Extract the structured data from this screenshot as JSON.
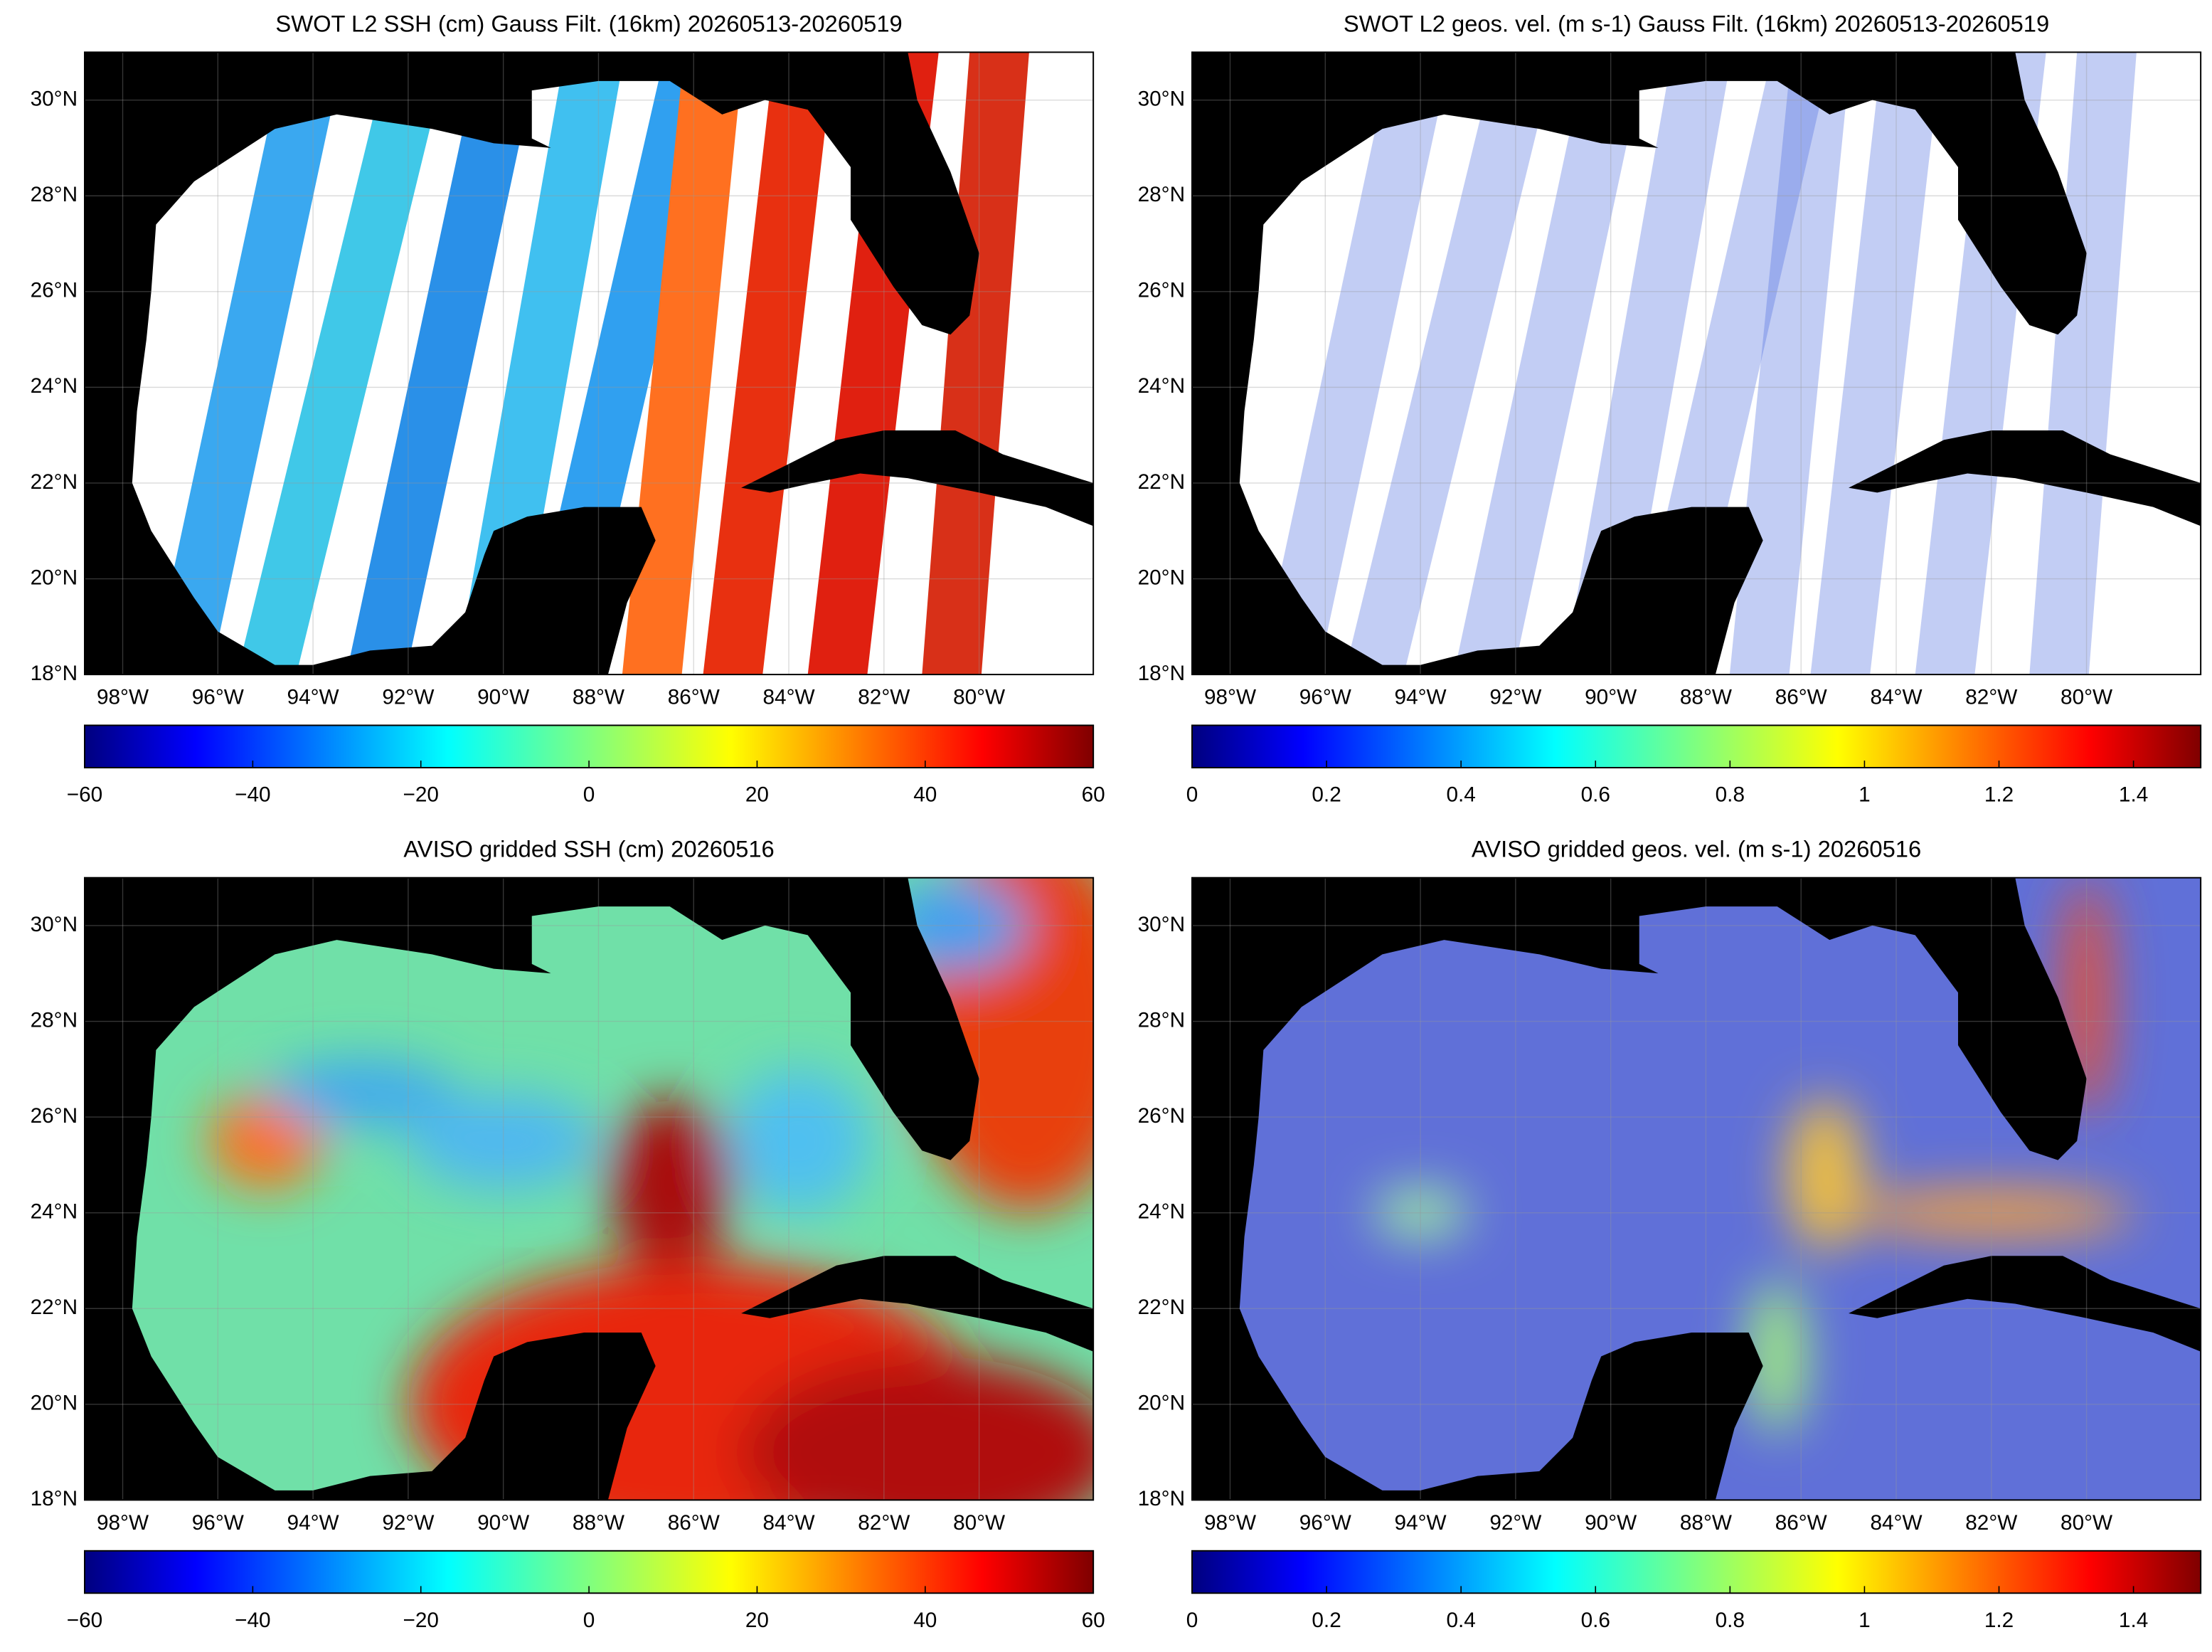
{
  "chart_data": [
    {
      "type": "map",
      "title": "SWOT L2 SSH (cm) Gauss Filt. (16km) 20260513-20260519",
      "xlim": [
        -98.8,
        -77.6
      ],
      "ylim": [
        18,
        31
      ],
      "xticks": [
        {
          "value": -98,
          "label": "98°W"
        },
        {
          "value": -96,
          "label": "96°W"
        },
        {
          "value": -94,
          "label": "94°W"
        },
        {
          "value": -92,
          "label": "92°W"
        },
        {
          "value": -90,
          "label": "90°W"
        },
        {
          "value": -88,
          "label": "88°W"
        },
        {
          "value": -86,
          "label": "86°W"
        },
        {
          "value": -84,
          "label": "84°W"
        },
        {
          "value": -82,
          "label": "82°W"
        },
        {
          "value": -80,
          "label": "80°W"
        }
      ],
      "yticks": [
        {
          "value": 18,
          "label": "18°N"
        },
        {
          "value": 20,
          "label": "20°N"
        },
        {
          "value": 22,
          "label": "22°N"
        },
        {
          "value": 24,
          "label": "24°N"
        },
        {
          "value": 26,
          "label": "26°N"
        },
        {
          "value": 28,
          "label": "28°N"
        },
        {
          "value": 30,
          "label": "30°N"
        }
      ],
      "colorbar": {
        "lim": [
          -60,
          60
        ],
        "ticks": [
          {
            "value": -60,
            "label": "−60"
          },
          {
            "value": -40,
            "label": "−40"
          },
          {
            "value": -20,
            "label": "−20"
          },
          0,
          20,
          40,
          60
        ]
      }
    },
    {
      "type": "map",
      "title": "SWOT L2 geos. vel. (m s-1) Gauss Filt. (16km) 20260513-20260519",
      "xlim": [
        -98.8,
        -77.6
      ],
      "ylim": [
        18,
        31
      ],
      "xticks": [
        {
          "value": -98,
          "label": "98°W"
        },
        {
          "value": -96,
          "label": "96°W"
        },
        {
          "value": -94,
          "label": "94°W"
        },
        {
          "value": -92,
          "label": "92°W"
        },
        {
          "value": -90,
          "label": "90°W"
        },
        {
          "value": -88,
          "label": "88°W"
        },
        {
          "value": -86,
          "label": "86°W"
        },
        {
          "value": -84,
          "label": "84°W"
        },
        {
          "value": -82,
          "label": "82°W"
        },
        {
          "value": -80,
          "label": "80°W"
        }
      ],
      "yticks": [
        {
          "value": 18,
          "label": "18°N"
        },
        {
          "value": 20,
          "label": "20°N"
        },
        {
          "value": 22,
          "label": "22°N"
        },
        {
          "value": 24,
          "label": "24°N"
        },
        {
          "value": 26,
          "label": "26°N"
        },
        {
          "value": 28,
          "label": "28°N"
        },
        {
          "value": 30,
          "label": "30°N"
        }
      ],
      "colorbar": {
        "lim": [
          0,
          1.5
        ],
        "ticks": [
          0,
          0.2,
          0.4,
          0.6,
          0.8,
          1,
          1.2,
          1.4
        ]
      }
    },
    {
      "type": "map",
      "title": "AVISO gridded SSH (cm) 20260516",
      "xlim": [
        -98.8,
        -77.6
      ],
      "ylim": [
        18,
        31
      ],
      "xticks": [
        {
          "value": -98,
          "label": "98°W"
        },
        {
          "value": -96,
          "label": "96°W"
        },
        {
          "value": -94,
          "label": "94°W"
        },
        {
          "value": -92,
          "label": "92°W"
        },
        {
          "value": -90,
          "label": "90°W"
        },
        {
          "value": -88,
          "label": "88°W"
        },
        {
          "value": -86,
          "label": "86°W"
        },
        {
          "value": -84,
          "label": "84°W"
        },
        {
          "value": -82,
          "label": "82°W"
        },
        {
          "value": -80,
          "label": "80°W"
        }
      ],
      "yticks": [
        {
          "value": 18,
          "label": "18°N"
        },
        {
          "value": 20,
          "label": "20°N"
        },
        {
          "value": 22,
          "label": "22°N"
        },
        {
          "value": 24,
          "label": "24°N"
        },
        {
          "value": 26,
          "label": "26°N"
        },
        {
          "value": 28,
          "label": "28°N"
        },
        {
          "value": 30,
          "label": "30°N"
        }
      ],
      "colorbar": {
        "lim": [
          -60,
          60
        ],
        "ticks": [
          {
            "value": -60,
            "label": "−60"
          },
          {
            "value": -40,
            "label": "−40"
          },
          {
            "value": -20,
            "label": "−20"
          },
          0,
          20,
          40,
          60
        ]
      }
    },
    {
      "type": "map",
      "title": "AVISO gridded geos. vel. (m s-1)  20260516",
      "xlim": [
        -98.8,
        -77.6
      ],
      "ylim": [
        18,
        31
      ],
      "xticks": [
        {
          "value": -98,
          "label": "98°W"
        },
        {
          "value": -96,
          "label": "96°W"
        },
        {
          "value": -94,
          "label": "94°W"
        },
        {
          "value": -92,
          "label": "92°W"
        },
        {
          "value": -90,
          "label": "90°W"
        },
        {
          "value": -88,
          "label": "88°W"
        },
        {
          "value": -86,
          "label": "86°W"
        },
        {
          "value": -84,
          "label": "84°W"
        },
        {
          "value": -82,
          "label": "82°W"
        },
        {
          "value": -80,
          "label": "80°W"
        }
      ],
      "yticks": [
        {
          "value": 18,
          "label": "18°N"
        },
        {
          "value": 20,
          "label": "20°N"
        },
        {
          "value": 22,
          "label": "22°N"
        },
        {
          "value": 24,
          "label": "24°N"
        },
        {
          "value": 26,
          "label": "26°N"
        },
        {
          "value": 28,
          "label": "28°N"
        },
        {
          "value": 30,
          "label": "30°N"
        }
      ],
      "colorbar": {
        "lim": [
          0,
          1.5
        ],
        "ticks": [
          0,
          0.2,
          0.4,
          0.6,
          0.8,
          1,
          1.2,
          1.4
        ]
      }
    }
  ]
}
